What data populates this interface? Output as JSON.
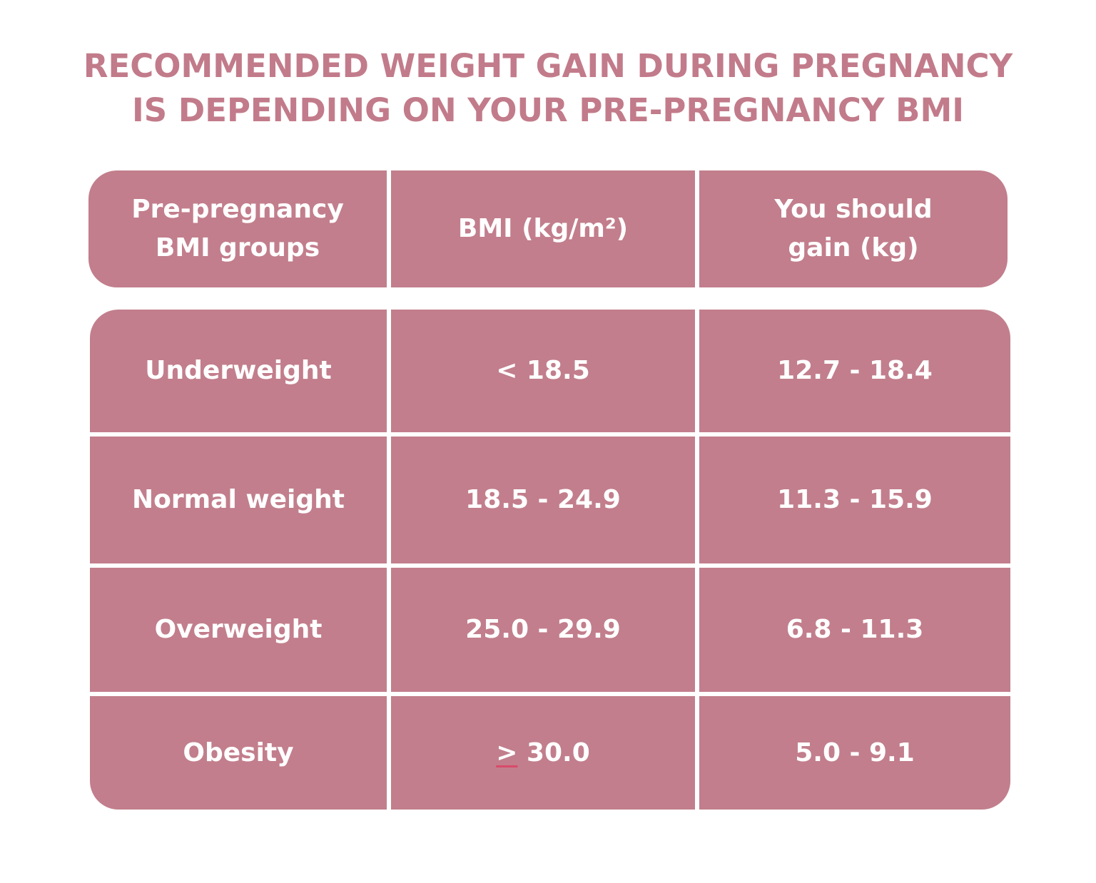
{
  "title": {
    "line1": "RECOMMENDED WEIGHT GAIN DURING PREGNANCY",
    "line2": "IS DEPENDING ON YOUR PRE-PREGNANCY BMI"
  },
  "colors": {
    "title": "#c27b8a",
    "cell_background": "#c27e8c",
    "cell_text": "#ffffff",
    "divider": "#ffffff"
  },
  "table": {
    "headers": [
      {
        "line1": "Pre-pregnancy",
        "line2": "BMI groups"
      },
      {
        "line1": "BMI (kg/m²)"
      },
      {
        "line1": "You should",
        "line2": "gain (kg)"
      }
    ],
    "rows": [
      {
        "group": "Underweight",
        "bmi": "< 18.5",
        "gain": "12.7 - 18.4"
      },
      {
        "group": "Normal weight",
        "bmi": "18.5 - 24.9",
        "gain": "11.3 - 15.9"
      },
      {
        "group": "Overweight",
        "bmi": "25.0 - 29.9",
        "gain": "6.8 - 11.3"
      },
      {
        "group": "Obesity",
        "bmi_symbol": ">",
        "bmi_value": " 30.0",
        "gain": "5.0 - 9.1"
      }
    ]
  }
}
